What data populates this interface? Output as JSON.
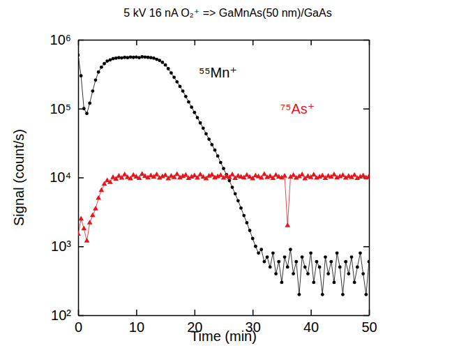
{
  "chart_data": {
    "type": "line",
    "title": "5 kV 16 nA O₂⁺ => GaMnAs(50 nm)/GaAs",
    "x_label": "Time (min)",
    "y_label": "Signal (count/s)",
    "log": "y",
    "grid": false,
    "xlim": [
      0,
      50
    ],
    "xticks": [
      0,
      10,
      20,
      30,
      40,
      50
    ],
    "ylim": [
      100,
      1000000
    ],
    "yticks": [
      {
        "value": 100,
        "label": "10²"
      },
      {
        "value": 1000,
        "label": "10³"
      },
      {
        "value": 10000,
        "label": "10⁴"
      },
      {
        "value": 100000,
        "label": "10⁵"
      },
      {
        "value": 1000000,
        "label": "10⁶"
      }
    ],
    "x": [
      0,
      0.5,
      1,
      1.5,
      2,
      2.5,
      3,
      3.5,
      4,
      4.5,
      5,
      5.5,
      6,
      6.5,
      7,
      7.5,
      8,
      8.5,
      9,
      9.5,
      10,
      10.5,
      11,
      11.5,
      12,
      12.5,
      13,
      13.5,
      14,
      14.5,
      15,
      15.5,
      16,
      16.5,
      17,
      17.5,
      18,
      18.5,
      19,
      19.5,
      20,
      20.5,
      21,
      21.5,
      22,
      22.5,
      23,
      23.5,
      24,
      24.5,
      25,
      25.5,
      26,
      26.5,
      27,
      27.5,
      28,
      28.5,
      29,
      29.5,
      30,
      30.5,
      31,
      31.5,
      32,
      32.5,
      33,
      33.5,
      34,
      34.5,
      35,
      35.5,
      36,
      36.5,
      37,
      37.5,
      38,
      38.5,
      39,
      39.5,
      40,
      40.5,
      41,
      41.5,
      42,
      42.5,
      43,
      43.5,
      44,
      44.5,
      45,
      45.5,
      46,
      46.5,
      47,
      47.5,
      48,
      48.5,
      49,
      49.5,
      50
    ],
    "series": [
      {
        "name": "⁵⁵Mn⁺",
        "color": "#000000",
        "marker": "circle",
        "line_style": "solid",
        "values": [
          600000,
          300000,
          100000,
          85000,
          120000,
          180000,
          260000,
          340000,
          400000,
          450000,
          490000,
          510000,
          530000,
          540000,
          550000,
          545000,
          555000,
          550000,
          560000,
          555000,
          560000,
          550000,
          565000,
          560000,
          555000,
          550000,
          540000,
          520000,
          500000,
          470000,
          430000,
          380000,
          330000,
          285000,
          245000,
          210000,
          180000,
          150000,
          125000,
          105000,
          88000,
          74000,
          62000,
          52000,
          43000,
          36000,
          30000,
          25000,
          20500,
          16500,
          13500,
          11000,
          9000,
          7200,
          5800,
          4600,
          3600,
          2800,
          2200,
          1700,
          1300,
          1000,
          800,
          900,
          600,
          700,
          500,
          800,
          400,
          600,
          300,
          700,
          500,
          900,
          400,
          600,
          200,
          700,
          500,
          400,
          800,
          300,
          600,
          500,
          200,
          700,
          400,
          600,
          300,
          800,
          500,
          200,
          600,
          400,
          700,
          300,
          500,
          800,
          400,
          200,
          600
        ]
      },
      {
        "name": "⁷⁵As⁺",
        "color": "#e8141a",
        "marker": "triangle",
        "line_style": "solid",
        "values": [
          1500,
          2500,
          1800,
          1200,
          2200,
          2800,
          3500,
          5000,
          6500,
          8000,
          9000,
          8500,
          10000,
          9500,
          10500,
          9800,
          11000,
          10000,
          9600,
          10800,
          10200,
          9700,
          11200,
          10400,
          9900,
          10600,
          10100,
          11000,
          9800,
          10300,
          10700,
          9600,
          10500,
          10000,
          11100,
          9900,
          10400,
          10800,
          9700,
          10200,
          10600,
          9800,
          11000,
          10100,
          9600,
          10500,
          10900,
          9900,
          10300,
          10700,
          9800,
          10400,
          10000,
          11000,
          9700,
          10500,
          10200,
          9900,
          10800,
          10100,
          9600,
          10600,
          10300,
          9800,
          11100,
          10000,
          10400,
          9700,
          10800,
          10200,
          9900,
          10500,
          2000,
          10100,
          10700,
          9800,
          10300,
          11000,
          9600,
          10400,
          10000,
          10900,
          9800,
          10200,
          10600,
          9700,
          10500,
          10100,
          11000,
          9900,
          10300,
          10700,
          9800,
          10400,
          10000,
          10800,
          9700,
          10200,
          10600,
          9900,
          10300
        ]
      }
    ]
  }
}
